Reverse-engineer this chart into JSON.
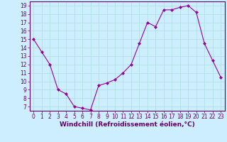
{
  "x": [
    0,
    1,
    2,
    3,
    4,
    5,
    6,
    7,
    8,
    9,
    10,
    11,
    12,
    13,
    14,
    15,
    16,
    17,
    18,
    19,
    20,
    21,
    22,
    23
  ],
  "y": [
    15,
    13.5,
    12,
    9,
    8.5,
    7,
    6.8,
    6.6,
    9.5,
    9.8,
    10.2,
    11,
    12,
    14.5,
    17,
    16.5,
    18.5,
    18.5,
    18.8,
    19,
    18.2,
    14.5,
    12.5,
    10.5
  ],
  "line_color": "#990099",
  "marker": "D",
  "marker_size": 2,
  "bg_color": "#cceeff",
  "grid_color": "#aadddd",
  "xlabel": "Windchill (Refroidissement éolien,°C)",
  "xlabel_fontsize": 6.5,
  "tick_fontsize": 5.5,
  "ylim": [
    6.5,
    19.5
  ],
  "xlim": [
    -0.5,
    23.5
  ],
  "yticks": [
    7,
    8,
    9,
    10,
    11,
    12,
    13,
    14,
    15,
    16,
    17,
    18,
    19
  ],
  "xticks": [
    0,
    1,
    2,
    3,
    4,
    5,
    6,
    7,
    8,
    9,
    10,
    11,
    12,
    13,
    14,
    15,
    16,
    17,
    18,
    19,
    20,
    21,
    22,
    23
  ],
  "spine_color": "#660066",
  "label_color": "#660066"
}
